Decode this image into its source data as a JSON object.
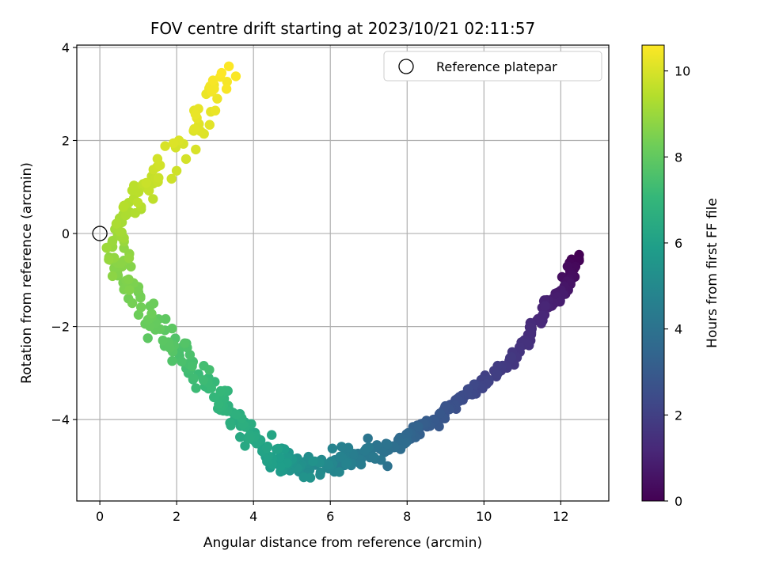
{
  "chart_data": {
    "type": "scatter",
    "title": "FOV centre drift starting at 2023/10/21 02:11:57",
    "xlabel": "Angular distance from reference (arcmin)",
    "ylabel": "Rotation from reference (arcmin)",
    "xlim": [
      -0.6,
      13.25
    ],
    "ylim": [
      -5.75,
      4.05
    ],
    "xticks": [
      0,
      2,
      4,
      6,
      8,
      10,
      12
    ],
    "yticks": [
      -4,
      -2,
      0,
      2,
      4
    ],
    "grid": true,
    "legend": {
      "position": "top-right",
      "entries": [
        {
          "label": "Reference platepar",
          "marker": "open-circle"
        }
      ]
    },
    "reference_point": {
      "x": 0,
      "y": 0
    },
    "colorbar": {
      "label": "Hours from first FF file",
      "range": [
        0,
        10.6
      ],
      "ticks": [
        0,
        2,
        4,
        6,
        8,
        10
      ],
      "colormap": "viridis"
    },
    "trajectory_keypoints": [
      {
        "hours": 0.0,
        "x": 12.4,
        "y": -0.5
      },
      {
        "hours": 0.5,
        "x": 12.2,
        "y": -1.1
      },
      {
        "hours": 1.0,
        "x": 11.7,
        "y": -1.5
      },
      {
        "hours": 1.5,
        "x": 11.0,
        "y": -2.4
      },
      {
        "hours": 2.0,
        "x": 10.2,
        "y": -3.1
      },
      {
        "hours": 2.5,
        "x": 9.3,
        "y": -3.6
      },
      {
        "hours": 3.0,
        "x": 8.6,
        "y": -4.1
      },
      {
        "hours": 3.5,
        "x": 8.0,
        "y": -4.4
      },
      {
        "hours": 4.0,
        "x": 7.4,
        "y": -4.7
      },
      {
        "hours": 4.5,
        "x": 6.5,
        "y": -4.8
      },
      {
        "hours": 5.0,
        "x": 5.8,
        "y": -5.0
      },
      {
        "hours": 5.5,
        "x": 5.0,
        "y": -5.0
      },
      {
        "hours": 6.0,
        "x": 4.4,
        "y": -4.8
      },
      {
        "hours": 6.5,
        "x": 3.7,
        "y": -4.2
      },
      {
        "hours": 7.0,
        "x": 3.0,
        "y": -3.5
      },
      {
        "hours": 7.5,
        "x": 2.3,
        "y": -2.7
      },
      {
        "hours": 8.0,
        "x": 1.5,
        "y": -2.0
      },
      {
        "hours": 8.5,
        "x": 0.7,
        "y": -1.1
      },
      {
        "hours": 9.0,
        "x": 0.3,
        "y": -0.2
      },
      {
        "hours": 9.4,
        "x": 0.8,
        "y": 0.6
      },
      {
        "hours": 9.8,
        "x": 1.6,
        "y": 1.3
      },
      {
        "hours": 10.1,
        "x": 2.4,
        "y": 2.2
      },
      {
        "hours": 10.4,
        "x": 3.0,
        "y": 3.1
      },
      {
        "hours": 10.6,
        "x": 3.4,
        "y": 3.5
      }
    ],
    "point_count": 520
  }
}
